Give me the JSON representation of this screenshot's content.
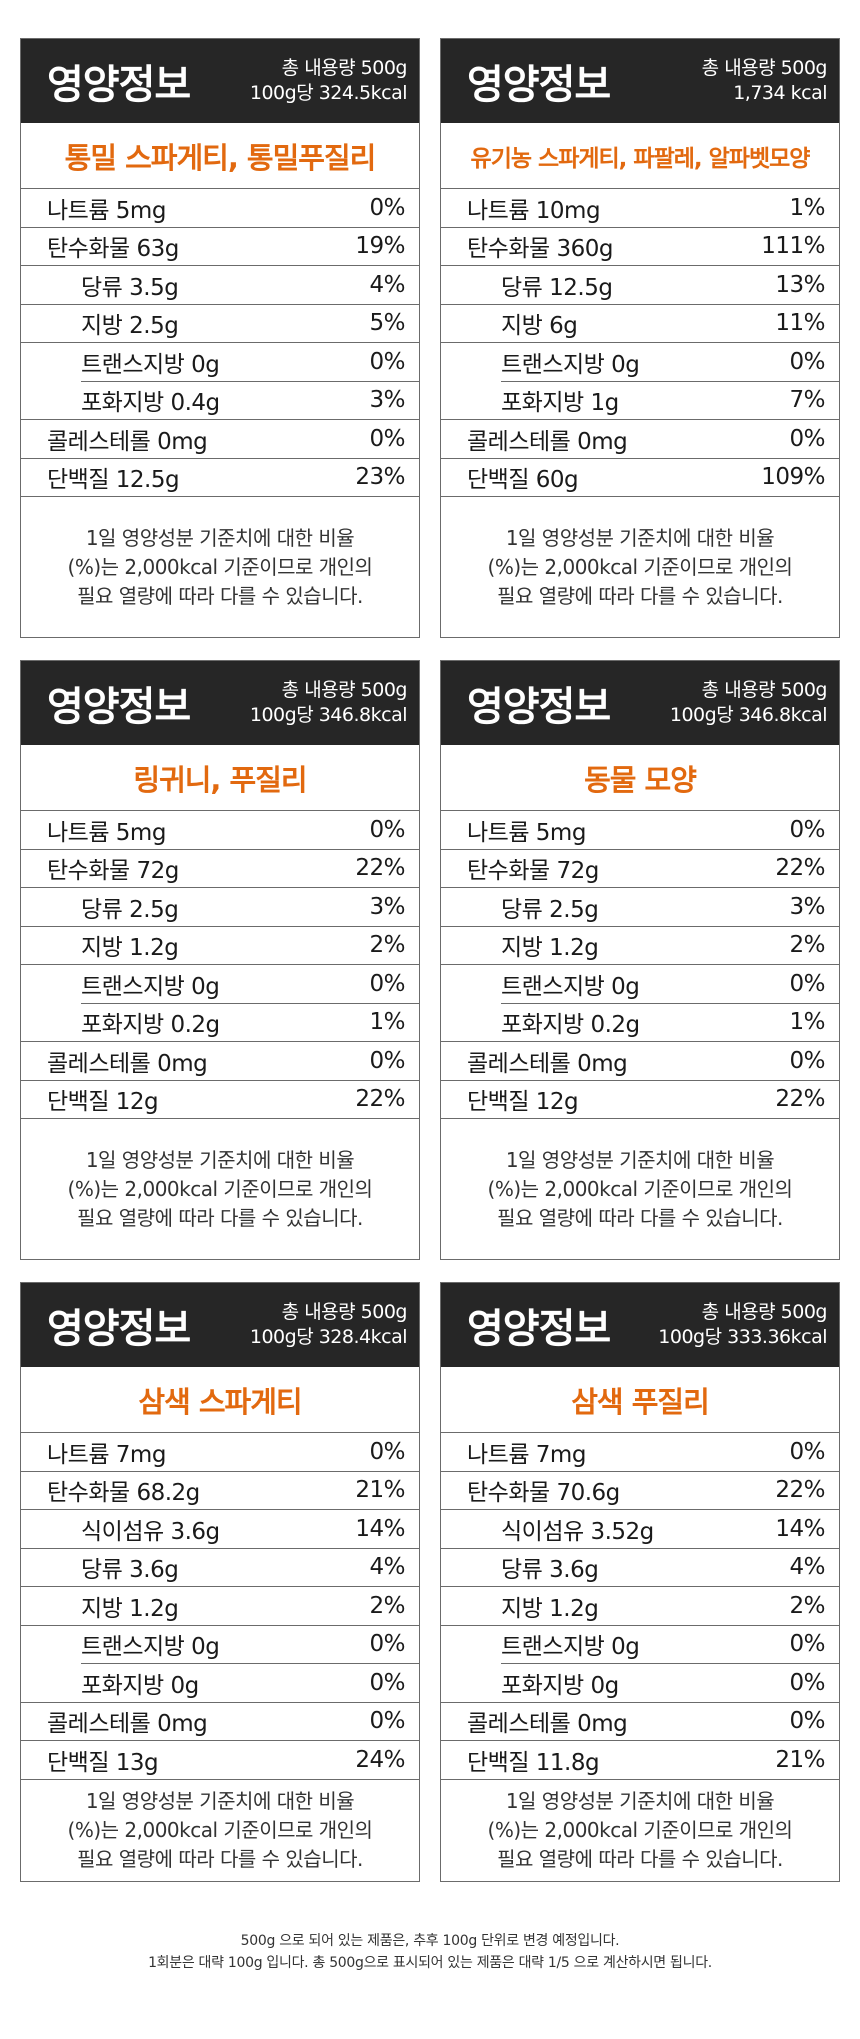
{
  "cards": [
    {
      "title": "영양정보",
      "meta_line1": "총 내용량 500g",
      "meta_line2": "100g당 324.5kcal",
      "product": "통밀 스파게티, 통밀푸질리",
      "rows": [
        {
          "label": "나트륨 5mg",
          "value": "0%"
        },
        {
          "label": "탄수화물 63g",
          "value": "19%"
        },
        {
          "label": "당류 3.5g",
          "value": "4%"
        },
        {
          "label": "지방 2.5g",
          "value": "5%"
        },
        {
          "label": "트랜스지방 0g",
          "value": "0%"
        },
        {
          "label": "포화지방 0.4g",
          "value": "3%"
        },
        {
          "label": "콜레스테롤 0mg",
          "value": "0%"
        },
        {
          "label": "단백질 12.5g",
          "value": "23%"
        }
      ],
      "footnote_l1": "1일 영양성분 기준치에 대한 비율",
      "footnote_l2": "(%)는 2,000kcal 기준이므로 개인의",
      "footnote_l3": "필요 열량에 따라 다를 수 있습니다."
    },
    {
      "title": "영양정보",
      "meta_line1": "총 내용량 500g",
      "meta_line2": "1,734 kcal",
      "product": "유기농 스파게티, 파팔레, 알파벳모양",
      "rows": [
        {
          "label": "나트륨 10mg",
          "value": "1%"
        },
        {
          "label": "탄수화물 360g",
          "value": "111%"
        },
        {
          "label": "당류 12.5g",
          "value": "13%"
        },
        {
          "label": "지방 6g",
          "value": "11%"
        },
        {
          "label": "트랜스지방 0g",
          "value": "0%"
        },
        {
          "label": "포화지방 1g",
          "value": "7%"
        },
        {
          "label": "콜레스테롤 0mg",
          "value": "0%"
        },
        {
          "label": "단백질 60g",
          "value": "109%"
        }
      ],
      "footnote_l1": "1일 영양성분 기준치에 대한 비율",
      "footnote_l2": "(%)는 2,000kcal 기준이므로 개인의",
      "footnote_l3": "필요 열량에 따라 다를 수 있습니다."
    },
    {
      "title": "영양정보",
      "meta_line1": "총 내용량 500g",
      "meta_line2": "100g당 346.8kcal",
      "product": "링귀니, 푸질리",
      "rows": [
        {
          "label": "나트륨 5mg",
          "value": "0%"
        },
        {
          "label": "탄수화물 72g",
          "value": "22%"
        },
        {
          "label": "당류 2.5g",
          "value": "3%"
        },
        {
          "label": "지방 1.2g",
          "value": "2%"
        },
        {
          "label": "트랜스지방 0g",
          "value": "0%"
        },
        {
          "label": "포화지방 0.2g",
          "value": "1%"
        },
        {
          "label": "콜레스테롤 0mg",
          "value": "0%"
        },
        {
          "label": "단백질 12g",
          "value": "22%"
        }
      ],
      "footnote_l1": "1일 영양성분 기준치에 대한 비율",
      "footnote_l2": "(%)는 2,000kcal 기준이므로 개인의",
      "footnote_l3": "필요 열량에 따라 다를 수 있습니다."
    },
    {
      "title": "영양정보",
      "meta_line1": "총 내용량 500g",
      "meta_line2": "100g당 346.8kcal",
      "product": "동물 모양",
      "rows": [
        {
          "label": "나트륨 5mg",
          "value": "0%"
        },
        {
          "label": "탄수화물 72g",
          "value": "22%"
        },
        {
          "label": "당류 2.5g",
          "value": "3%"
        },
        {
          "label": "지방 1.2g",
          "value": "2%"
        },
        {
          "label": "트랜스지방 0g",
          "value": "0%"
        },
        {
          "label": "포화지방 0.2g",
          "value": "1%"
        },
        {
          "label": "콜레스테롤 0mg",
          "value": "0%"
        },
        {
          "label": "단백질 12g",
          "value": "22%"
        }
      ],
      "footnote_l1": "1일 영양성분 기준치에 대한 비율",
      "footnote_l2": "(%)는 2,000kcal 기준이므로 개인의",
      "footnote_l3": "필요 열량에 따라 다를 수 있습니다."
    },
    {
      "title": "영양정보",
      "meta_line1": "총 내용량 500g",
      "meta_line2": "100g당 328.4kcal",
      "product": "삼색 스파게티",
      "rows": [
        {
          "label": "나트륨 7mg",
          "value": "0%"
        },
        {
          "label": "탄수화물 68.2g",
          "value": "21%"
        },
        {
          "label": "식이섬유 3.6g",
          "value": "14%"
        },
        {
          "label": "당류 3.6g",
          "value": "4%"
        },
        {
          "label": "지방 1.2g",
          "value": "2%"
        },
        {
          "label": "트랜스지방 0g",
          "value": "0%"
        },
        {
          "label": "포화지방 0g",
          "value": "0%"
        },
        {
          "label": "콜레스테롤 0mg",
          "value": "0%"
        },
        {
          "label": "단백질 13g",
          "value": "24%"
        }
      ],
      "footnote_l1": "1일 영양성분 기준치에 대한 비율",
      "footnote_l2": "(%)는 2,000kcal 기준이므로 개인의",
      "footnote_l3": "필요 열량에 따라 다를 수 있습니다."
    },
    {
      "title": "영양정보",
      "meta_line1": "총 내용량 500g",
      "meta_line2": "100g당 333.36kcal",
      "product": "삼색 푸질리",
      "rows": [
        {
          "label": "나트륨 7mg",
          "value": "0%"
        },
        {
          "label": "탄수화물 70.6g",
          "value": "22%"
        },
        {
          "label": "식이섬유 3.52g",
          "value": "14%"
        },
        {
          "label": "당류 3.6g",
          "value": "4%"
        },
        {
          "label": "지방 1.2g",
          "value": "2%"
        },
        {
          "label": "트랜스지방 0g",
          "value": "0%"
        },
        {
          "label": "포화지방 0g",
          "value": "0%"
        },
        {
          "label": "콜레스테롤 0mg",
          "value": "0%"
        },
        {
          "label": "단백질 11.8g",
          "value": "21%"
        }
      ],
      "footnote_l1": "1일 영양성분 기준치에 대한 비율",
      "footnote_l2": "(%)는 2,000kcal 기준이므로 개인의",
      "footnote_l3": "필요 열량에 따라 다를 수 있습니다."
    }
  ],
  "notes": {
    "line1": "500g 으로 되어 있는 제품은, 추후 100g 단위로 변경 예정입니다.",
    "line2": "1회분은 대략 100g 입니다. 총 500g으로 표시되어 있는 제품은 대략 1/5 으로 계산하시면 됩니다."
  }
}
